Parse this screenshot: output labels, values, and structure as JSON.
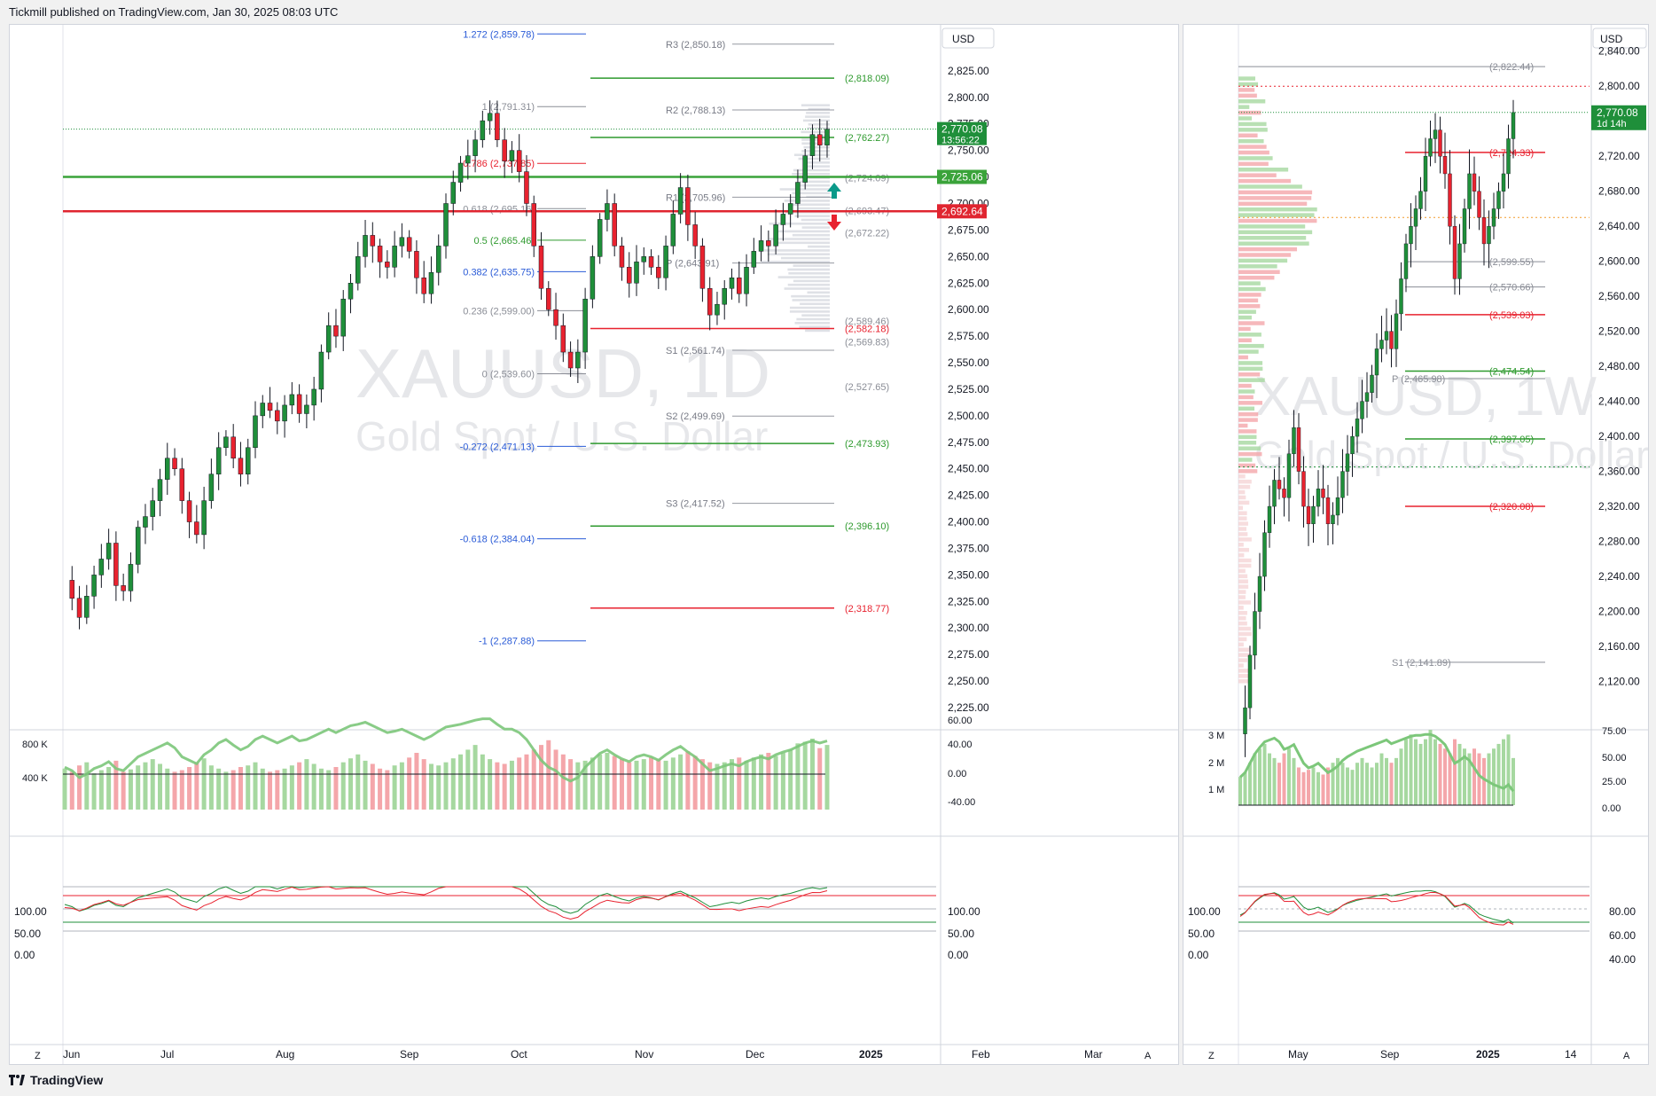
{
  "header": {
    "publisher_text": "Tickmill published on TradingView.com, Jan 30, 2025 08:03 UTC"
  },
  "footer": {
    "brand": "TradingView"
  },
  "colors": {
    "up": "#26a69a",
    "candle_up": "#1f8f3a",
    "candle_down": "#e8222f",
    "level_green": "#2e9a2e",
    "level_red": "#e8222f",
    "fib_blue": "#2a5bd7",
    "pivot_gray": "#787b86",
    "watermark": "#e6e7ea",
    "profile": "#d7dae0"
  },
  "daily": {
    "watermark_symbol": "XAUUSD, 1D",
    "watermark_name": "Gold Spot / U.S. Dollar",
    "currency": "USD",
    "price_now": "2,770.08",
    "countdown": "13:56:22",
    "badge_green": "2,725.06",
    "badge_red": "2,692.64",
    "axis_prices": [
      "2,825.00",
      "2,800.00",
      "2,775.00",
      "2,750.00",
      "2,725.00",
      "2,700.00",
      "2,675.00",
      "2,650.00",
      "2,625.00",
      "2,600.00",
      "2,575.00",
      "2,550.00",
      "2,525.00",
      "2,500.00",
      "2,475.00",
      "2,450.00",
      "2,425.00",
      "2,400.00",
      "2,375.00",
      "2,350.00",
      "2,325.00",
      "2,300.00",
      "2,275.00",
      "2,250.00",
      "2,225.00"
    ],
    "time_labels": [
      "Jun",
      "Jul",
      "Aug",
      "Sep",
      "Oct",
      "Nov",
      "Dec",
      "2025",
      "Feb",
      "Mar"
    ],
    "volume_axis": [
      "800 K",
      "400 K"
    ],
    "rsi_axis": [
      "40.00",
      "0.00",
      "-40.00"
    ],
    "stoch_axis_left": [
      "100.00",
      "50.00",
      "0.00"
    ],
    "stoch_axis_right": [
      "100.00",
      "50.00",
      "0.00"
    ],
    "fib_levels": [
      {
        "label": "1.272 (2,859.78)",
        "price": 2859.78,
        "color": "blue"
      },
      {
        "label": "1 (2,791.31)",
        "price": 2791.31,
        "color": "gray"
      },
      {
        "label": "0.786 (2,737.85)",
        "price": 2737.85,
        "color": "red"
      },
      {
        "label": "0.618 (2,695.16)",
        "price": 2695.16,
        "color": "gray"
      },
      {
        "label": "0.5 (2,665.46)",
        "price": 2665.46,
        "color": "green"
      },
      {
        "label": "0.382 (2,635.75)",
        "price": 2635.75,
        "color": "blue"
      },
      {
        "label": "0.236 (2,599.00)",
        "price": 2599.0,
        "color": "gray"
      },
      {
        "label": "0 (2,539.60)",
        "price": 2539.6,
        "color": "gray"
      },
      {
        "label": "-0.272 (2,471.13)",
        "price": 2471.13,
        "color": "blue"
      },
      {
        "label": "-0.618 (2,384.04)",
        "price": 2384.04,
        "color": "blue"
      },
      {
        "label": "-1 (2,287.88)",
        "price": 2287.88,
        "color": "blue"
      }
    ],
    "pivot_levels": [
      {
        "label": "R3 (2,850.18)",
        "price": 2850.18
      },
      {
        "label": "R2 (2,788.13)",
        "price": 2788.13
      },
      {
        "label": "R1 (2,705.96)",
        "price": 2705.96
      },
      {
        "label": "P (2,643.91)",
        "price": 2643.91
      },
      {
        "label": "S1 (2,561.74)",
        "price": 2561.74
      },
      {
        "label": "S2 (2,499.69)",
        "price": 2499.69
      },
      {
        "label": "S3 (2,417.52)",
        "price": 2417.52
      }
    ],
    "right_levels": [
      {
        "label": "(2,818.09)",
        "price": 2818.09,
        "color": "green"
      },
      {
        "label": "(2,762.27)",
        "price": 2762.27,
        "color": "green"
      },
      {
        "label": "(2,724.09)",
        "price": 2724.09,
        "color": "gray"
      },
      {
        "label": "(2,693.47)",
        "price": 2693.47,
        "color": "gray"
      },
      {
        "label": "(2,672.22)",
        "price": 2672.22,
        "color": "gray"
      },
      {
        "label": "(2,589.46)",
        "price": 2589.46,
        "color": "gray"
      },
      {
        "label": "(2,582.18)",
        "price": 2582.18,
        "color": "red"
      },
      {
        "label": "(2,569.83)",
        "price": 2569.83,
        "color": "gray"
      },
      {
        "label": "(2,527.65)",
        "price": 2527.65,
        "color": "gray"
      },
      {
        "label": "(2,473.93)",
        "price": 2473.93,
        "color": "green"
      },
      {
        "label": "(2,396.10)",
        "price": 2396.1,
        "color": "green"
      },
      {
        "label": "(2,318.77)",
        "price": 2318.77,
        "color": "red"
      }
    ]
  },
  "weekly": {
    "watermark_symbol": "XAUUSD, 1W",
    "watermark_name": "Gold Spot / U.S. Dollar",
    "currency": "USD",
    "price_now": "2,770.08",
    "countdown": "1d 14h",
    "axis_prices": [
      "2,840.00",
      "2,800.00",
      "2,760.00",
      "2,720.00",
      "2,680.00",
      "2,640.00",
      "2,600.00",
      "2,560.00",
      "2,520.00",
      "2,480.00",
      "2,440.00",
      "2,400.00",
      "2,360.00",
      "2,320.00",
      "2,280.00",
      "2,240.00",
      "2,200.00",
      "2,160.00",
      "2,120.00"
    ],
    "time_labels": [
      "May",
      "Sep",
      "2025",
      "14"
    ],
    "volume_axis": [
      "3 M",
      "2 M",
      "1 M"
    ],
    "rsi_axis": [
      "75.00",
      "50.00",
      "25.00",
      "0.00"
    ],
    "stoch_axis_left": [
      "100.00",
      "50.00",
      "0.00"
    ],
    "stoch_axis_right": [
      "80.00",
      "60.00",
      "40.00"
    ],
    "levels": [
      {
        "label": "(2,822.44)",
        "price": 2822.44,
        "color": "gray"
      },
      {
        "label": "(2,724.33)",
        "price": 2724.33,
        "color": "red"
      },
      {
        "label": "(2,599.55)",
        "price": 2599.55,
        "color": "gray"
      },
      {
        "label": "(2,570.66)",
        "price": 2570.66,
        "color": "gray"
      },
      {
        "label": "(2,539.03)",
        "price": 2539.03,
        "color": "red"
      },
      {
        "label": "(2,474.54)",
        "price": 2474.54,
        "color": "green"
      },
      {
        "label": "P (2,465.98)",
        "price": 2465.98,
        "color": "gray"
      },
      {
        "label": "(2,397.05)",
        "price": 2397.05,
        "color": "green"
      },
      {
        "label": "(2,320.08)",
        "price": 2320.08,
        "color": "red"
      },
      {
        "label": "S1 (2,141.89)",
        "price": 2141.89,
        "color": "gray"
      }
    ]
  },
  "chart_data": [
    {
      "type": "candlestick",
      "title": "XAUUSD, 1D",
      "subtitle": "Gold Spot / U.S. Dollar",
      "ylim": [
        2225,
        2860
      ],
      "x_ticks": [
        "Jun",
        "Jul",
        "Aug",
        "Sep",
        "Oct",
        "Nov",
        "Dec",
        "2025",
        "Feb",
        "Mar"
      ],
      "close_path": [
        2345,
        2328,
        2310,
        2330,
        2350,
        2365,
        2380,
        2340,
        2335,
        2360,
        2395,
        2405,
        2420,
        2440,
        2460,
        2450,
        2420,
        2400,
        2388,
        2420,
        2445,
        2470,
        2480,
        2460,
        2445,
        2470,
        2500,
        2512,
        2505,
        2495,
        2510,
        2520,
        2502,
        2510,
        2525,
        2560,
        2585,
        2575,
        2610,
        2625,
        2650,
        2670,
        2660,
        2645,
        2640,
        2660,
        2668,
        2655,
        2630,
        2615,
        2635,
        2660,
        2700,
        2720,
        2738,
        2745,
        2760,
        2778,
        2785,
        2760,
        2740,
        2750,
        2730,
        2700,
        2660,
        2620,
        2600,
        2585,
        2560,
        2545,
        2560,
        2610,
        2650,
        2685,
        2700,
        2660,
        2640,
        2625,
        2645,
        2650,
        2640,
        2630,
        2660,
        2690,
        2715,
        2680,
        2660,
        2620,
        2595,
        2605,
        2620,
        2630,
        2615,
        2640,
        2655,
        2665,
        2660,
        2680,
        2690,
        2700,
        2720,
        2745,
        2765,
        2755,
        2770
      ],
      "volume_k": [
        520,
        480,
        560,
        600,
        460,
        500,
        540,
        620,
        480,
        510,
        560,
        600,
        640,
        580,
        520,
        480,
        500,
        540,
        600,
        650,
        560,
        520,
        480,
        500,
        540,
        560,
        600,
        520,
        480,
        500,
        520,
        560,
        600,
        640,
        580,
        520,
        500,
        540,
        600,
        650,
        700,
        620,
        580,
        520,
        500,
        560,
        600,
        660,
        720,
        640,
        580,
        560,
        600,
        650,
        700,
        760,
        820,
        700,
        640,
        600,
        580,
        620,
        660,
        700,
        760,
        820,
        880,
        760,
        700,
        640,
        600,
        620,
        660,
        700,
        720,
        680,
        640,
        600,
        620,
        640,
        660,
        640,
        620,
        660,
        700,
        740,
        680,
        640,
        600,
        580,
        600,
        640,
        660,
        620,
        660,
        700,
        720,
        680,
        720,
        760,
        840,
        860,
        900,
        780,
        820
      ],
      "rsi": [
        10,
        5,
        -5,
        0,
        8,
        12,
        18,
        8,
        5,
        15,
        25,
        30,
        35,
        40,
        45,
        38,
        25,
        20,
        15,
        28,
        35,
        45,
        50,
        42,
        35,
        40,
        50,
        55,
        50,
        45,
        50,
        55,
        48,
        50,
        55,
        60,
        65,
        60,
        65,
        70,
        72,
        75,
        70,
        65,
        60,
        62,
        65,
        60,
        55,
        50,
        55,
        62,
        68,
        70,
        72,
        75,
        78,
        80,
        80,
        72,
        65,
        65,
        60,
        50,
        35,
        20,
        10,
        5,
        -5,
        -10,
        -5,
        10,
        20,
        30,
        35,
        28,
        22,
        18,
        25,
        28,
        25,
        20,
        28,
        35,
        40,
        32,
        25,
        15,
        5,
        8,
        12,
        15,
        12,
        18,
        22,
        25,
        22,
        28,
        32,
        35,
        40,
        45,
        48,
        45,
        48
      ],
      "fib_levels": [
        2859.78,
        2791.31,
        2737.85,
        2695.16,
        2665.46,
        2635.75,
        2599.0,
        2539.6,
        2471.13,
        2384.04,
        2287.88
      ],
      "pivots": {
        "R3": 2850.18,
        "R2": 2788.13,
        "R1": 2705.96,
        "P": 2643.91,
        "S1": 2561.74,
        "S2": 2499.69,
        "S3": 2417.52
      },
      "last_price": 2770.08
    },
    {
      "type": "candlestick",
      "title": "XAUUSD, 1W",
      "subtitle": "Gold Spot / U.S. Dollar",
      "ylim": [
        2080,
        2860
      ],
      "x_ticks": [
        "May",
        "Sep",
        "2025",
        "14"
      ],
      "close_path": [
        2060,
        2090,
        2150,
        2200,
        2240,
        2290,
        2320,
        2350,
        2340,
        2330,
        2380,
        2410,
        2360,
        2320,
        2300,
        2320,
        2340,
        2330,
        2300,
        2310,
        2330,
        2360,
        2380,
        2400,
        2420,
        2440,
        2450,
        2470,
        2500,
        2510,
        2520,
        2500,
        2540,
        2580,
        2620,
        2640,
        2660,
        2680,
        2720,
        2740,
        2750,
        2720,
        2700,
        2640,
        2580,
        2620,
        2660,
        2700,
        2680,
        2650,
        2620,
        2640,
        2660,
        2680,
        2700,
        2740,
        2770
      ],
      "volume_m": [
        1.2,
        1.4,
        1.8,
        2.2,
        2.4,
        2.6,
        2.2,
        2.0,
        1.8,
        2.2,
        2.4,
        2.0,
        1.6,
        1.4,
        1.5,
        1.6,
        1.4,
        1.3,
        1.6,
        1.8,
        2.0,
        1.8,
        1.6,
        1.5,
        1.8,
        2.0,
        1.8,
        1.6,
        1.8,
        2.2,
        2.0,
        1.8,
        2.0,
        2.4,
        2.8,
        3.0,
        2.8,
        2.6,
        2.8,
        3.2,
        2.8,
        2.6,
        2.4,
        2.2,
        2.8,
        2.6,
        2.4,
        2.2,
        2.4,
        2.2,
        2.0,
        2.2,
        2.4,
        2.6,
        2.8,
        3.0,
        2.0
      ],
      "rsi": [
        30,
        35,
        45,
        55,
        62,
        68,
        70,
        72,
        68,
        60,
        62,
        65,
        55,
        45,
        40,
        42,
        45,
        40,
        35,
        38,
        42,
        48,
        52,
        55,
        58,
        60,
        62,
        64,
        66,
        68,
        70,
        66,
        68,
        70,
        72,
        74,
        75,
        75,
        76,
        76,
        74,
        70,
        65,
        55,
        45,
        48,
        52,
        48,
        40,
        32,
        28,
        25,
        22,
        20,
        18,
        22,
        15
      ],
      "levels": [
        2822.44,
        2724.33,
        2599.55,
        2570.66,
        2539.03,
        2474.54,
        2465.98,
        2397.05,
        2320.08,
        2141.89
      ],
      "last_price": 2770.08
    }
  ]
}
